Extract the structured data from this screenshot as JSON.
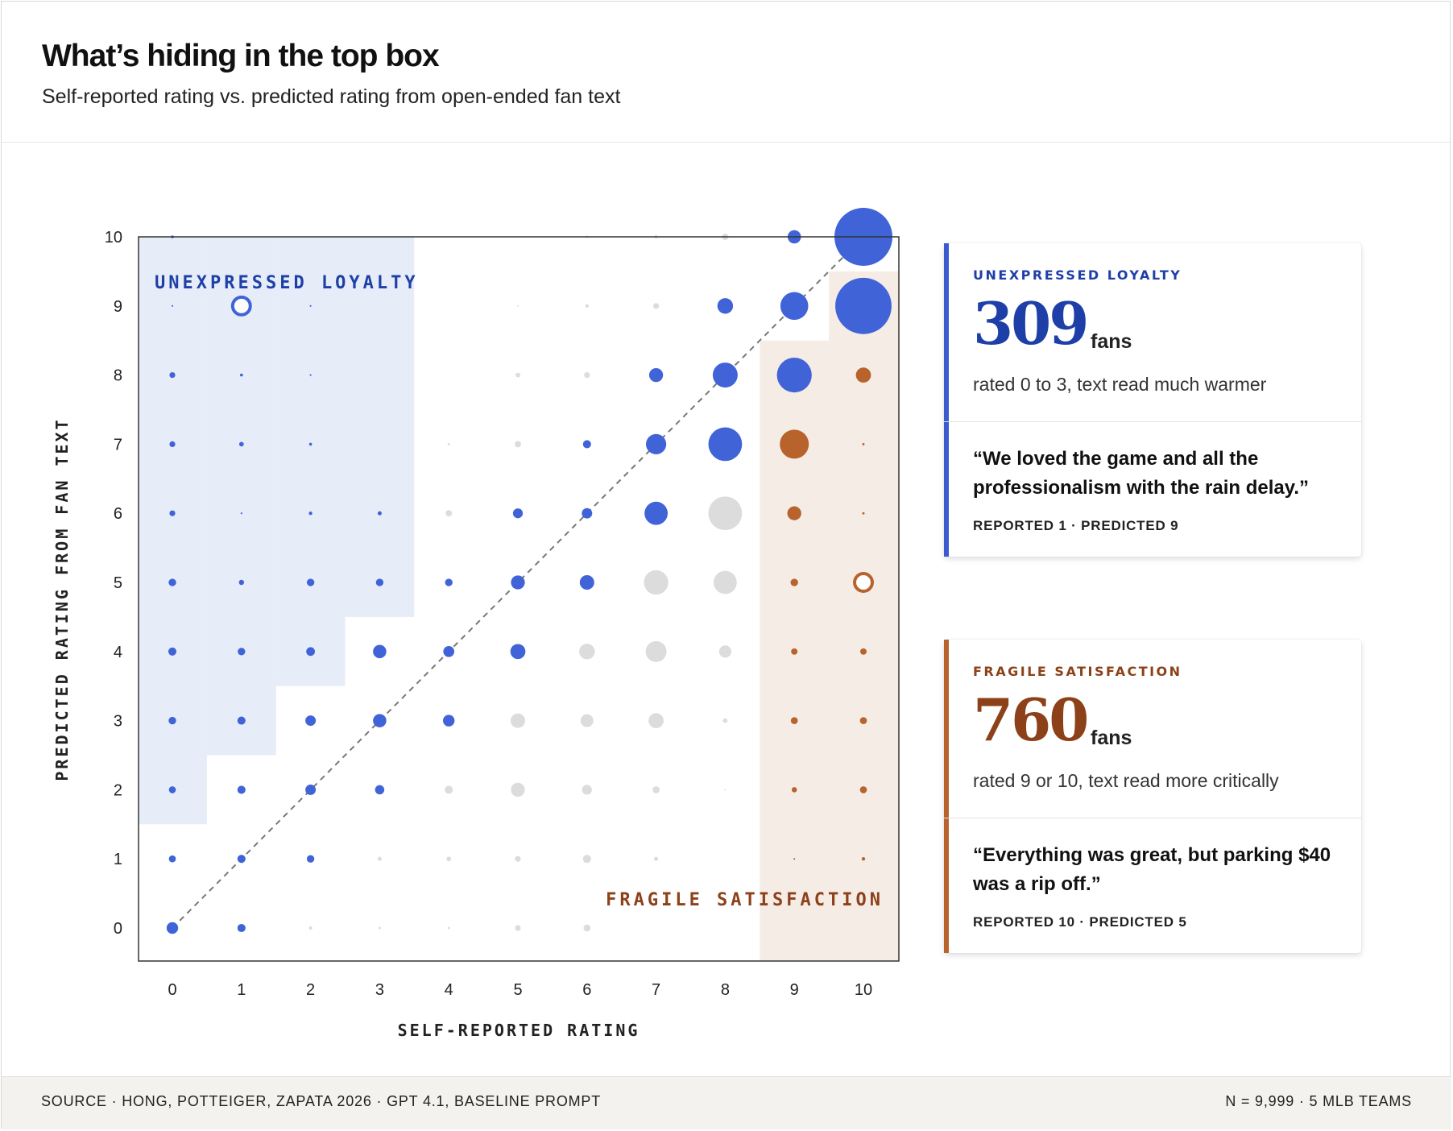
{
  "header": {
    "title": "What’s hiding in the top box",
    "subtitle": "Self-reported rating vs. predicted rating from open-ended fan text"
  },
  "colors": {
    "blue": "#4064d8",
    "blue_dark": "#1f3fa8",
    "orange": "#b8622c",
    "orange_dark": "#8c4119",
    "gray": "#dcdcdc",
    "blue_region": "#e6edf8",
    "orange_region": "#f5ece6"
  },
  "chart_data": {
    "type": "scatter",
    "title": "Self-reported rating vs. predicted rating from open-ended fan text",
    "xlabel": "SELF-REPORTED RATING",
    "ylabel": "PREDICTED RATING FROM FAN TEXT",
    "xlim": [
      0,
      10
    ],
    "ylim": [
      0,
      10
    ],
    "xticks": [
      "0",
      "1",
      "2",
      "3",
      "4",
      "5",
      "6",
      "7",
      "8",
      "9",
      "10"
    ],
    "yticks": [
      "0",
      "1",
      "2",
      "3",
      "4",
      "5",
      "6",
      "7",
      "8",
      "9",
      "10"
    ],
    "diagonal": "dashed reference line y = x",
    "region_labels": {
      "unexpressed_loyalty": "UNEXPRESSED LOYALTY",
      "fragile_satisfaction": "FRAGILE SATISFACTION"
    },
    "regions": {
      "unexpressed_loyalty_rule": "reported 0-3, predicted at least reported + 2",
      "fragile_satisfaction_rule": "reported 9-10, predicted below reported"
    },
    "size_scale": "circle radius relative to largest bubble (1.0)",
    "points": [
      {
        "x": 0,
        "y": 10,
        "r": 0.05,
        "c": "blue"
      },
      {
        "x": 0,
        "y": 9,
        "r": 0.03,
        "c": "blue"
      },
      {
        "x": 0,
        "y": 8,
        "r": 0.1,
        "c": "blue"
      },
      {
        "x": 0,
        "y": 7,
        "r": 0.1,
        "c": "blue"
      },
      {
        "x": 0,
        "y": 6,
        "r": 0.1,
        "c": "blue"
      },
      {
        "x": 0,
        "y": 5,
        "r": 0.13,
        "c": "blue"
      },
      {
        "x": 0,
        "y": 4,
        "r": 0.14,
        "c": "blue"
      },
      {
        "x": 0,
        "y": 3,
        "r": 0.13,
        "c": "blue"
      },
      {
        "x": 0,
        "y": 2,
        "r": 0.12,
        "c": "blue"
      },
      {
        "x": 0,
        "y": 1,
        "r": 0.12,
        "c": "blue"
      },
      {
        "x": 0,
        "y": 0,
        "r": 0.2,
        "c": "blue"
      },
      {
        "x": 1,
        "y": 9,
        "r": 0.36,
        "c": "blue",
        "hollow": true
      },
      {
        "x": 1,
        "y": 8,
        "r": 0.05,
        "c": "blue"
      },
      {
        "x": 1,
        "y": 7,
        "r": 0.08,
        "c": "blue"
      },
      {
        "x": 1,
        "y": 6,
        "r": 0.03,
        "c": "blue"
      },
      {
        "x": 1,
        "y": 5,
        "r": 0.09,
        "c": "blue"
      },
      {
        "x": 1,
        "y": 4,
        "r": 0.13,
        "c": "blue"
      },
      {
        "x": 1,
        "y": 3,
        "r": 0.14,
        "c": "blue"
      },
      {
        "x": 1,
        "y": 2,
        "r": 0.14,
        "c": "blue"
      },
      {
        "x": 1,
        "y": 1,
        "r": 0.14,
        "c": "blue"
      },
      {
        "x": 1,
        "y": 0,
        "r": 0.14,
        "c": "blue"
      },
      {
        "x": 2,
        "y": 9,
        "r": 0.03,
        "c": "blue"
      },
      {
        "x": 2,
        "y": 8,
        "r": 0.03,
        "c": "blue"
      },
      {
        "x": 2,
        "y": 7,
        "r": 0.05,
        "c": "blue"
      },
      {
        "x": 2,
        "y": 6,
        "r": 0.06,
        "c": "blue"
      },
      {
        "x": 2,
        "y": 5,
        "r": 0.13,
        "c": "blue"
      },
      {
        "x": 2,
        "y": 4,
        "r": 0.15,
        "c": "blue"
      },
      {
        "x": 2,
        "y": 3,
        "r": 0.18,
        "c": "blue"
      },
      {
        "x": 2,
        "y": 2,
        "r": 0.18,
        "c": "blue"
      },
      {
        "x": 2,
        "y": 1,
        "r": 0.13,
        "c": "blue"
      },
      {
        "x": 2,
        "y": 0,
        "r": 0.06,
        "c": "gray"
      },
      {
        "x": 3,
        "y": 6,
        "r": 0.07,
        "c": "blue"
      },
      {
        "x": 3,
        "y": 5,
        "r": 0.13,
        "c": "blue"
      },
      {
        "x": 3,
        "y": 4,
        "r": 0.23,
        "c": "blue"
      },
      {
        "x": 3,
        "y": 3,
        "r": 0.23,
        "c": "blue"
      },
      {
        "x": 3,
        "y": 2,
        "r": 0.16,
        "c": "blue"
      },
      {
        "x": 3,
        "y": 1,
        "r": 0.07,
        "c": "gray"
      },
      {
        "x": 3,
        "y": 0,
        "r": 0.04,
        "c": "gray"
      },
      {
        "x": 4,
        "y": 7,
        "r": 0.04,
        "c": "gray"
      },
      {
        "x": 4,
        "y": 6,
        "r": 0.11,
        "c": "gray"
      },
      {
        "x": 4,
        "y": 5,
        "r": 0.13,
        "c": "blue"
      },
      {
        "x": 4,
        "y": 4,
        "r": 0.19,
        "c": "blue"
      },
      {
        "x": 4,
        "y": 3,
        "r": 0.2,
        "c": "blue"
      },
      {
        "x": 4,
        "y": 2,
        "r": 0.14,
        "c": "gray"
      },
      {
        "x": 4,
        "y": 1,
        "r": 0.08,
        "c": "gray"
      },
      {
        "x": 4,
        "y": 0,
        "r": 0.04,
        "c": "gray"
      },
      {
        "x": 5,
        "y": 9,
        "r": 0.03,
        "c": "gray"
      },
      {
        "x": 5,
        "y": 8,
        "r": 0.08,
        "c": "gray"
      },
      {
        "x": 5,
        "y": 7,
        "r": 0.11,
        "c": "gray"
      },
      {
        "x": 5,
        "y": 6,
        "r": 0.17,
        "c": "blue"
      },
      {
        "x": 5,
        "y": 5,
        "r": 0.24,
        "c": "blue"
      },
      {
        "x": 5,
        "y": 4,
        "r": 0.26,
        "c": "blue"
      },
      {
        "x": 5,
        "y": 3,
        "r": 0.25,
        "c": "gray"
      },
      {
        "x": 5,
        "y": 2,
        "r": 0.24,
        "c": "gray"
      },
      {
        "x": 5,
        "y": 1,
        "r": 0.1,
        "c": "gray"
      },
      {
        "x": 5,
        "y": 0,
        "r": 0.1,
        "c": "gray"
      },
      {
        "x": 6,
        "y": 10,
        "r": 0.04,
        "c": "gray"
      },
      {
        "x": 6,
        "y": 9,
        "r": 0.06,
        "c": "gray"
      },
      {
        "x": 6,
        "y": 8,
        "r": 0.1,
        "c": "gray"
      },
      {
        "x": 6,
        "y": 7,
        "r": 0.14,
        "c": "blue"
      },
      {
        "x": 6,
        "y": 6,
        "r": 0.18,
        "c": "blue"
      },
      {
        "x": 6,
        "y": 5,
        "r": 0.25,
        "c": "blue"
      },
      {
        "x": 6,
        "y": 4,
        "r": 0.27,
        "c": "gray"
      },
      {
        "x": 6,
        "y": 3,
        "r": 0.22,
        "c": "gray"
      },
      {
        "x": 6,
        "y": 2,
        "r": 0.17,
        "c": "gray"
      },
      {
        "x": 6,
        "y": 1,
        "r": 0.14,
        "c": "gray"
      },
      {
        "x": 6,
        "y": 0,
        "r": 0.12,
        "c": "gray"
      },
      {
        "x": 7,
        "y": 10,
        "r": 0.06,
        "c": "gray"
      },
      {
        "x": 7,
        "y": 9,
        "r": 0.1,
        "c": "gray"
      },
      {
        "x": 7,
        "y": 8,
        "r": 0.24,
        "c": "blue"
      },
      {
        "x": 7,
        "y": 7,
        "r": 0.35,
        "c": "blue"
      },
      {
        "x": 7,
        "y": 6,
        "r": 0.4,
        "c": "blue"
      },
      {
        "x": 7,
        "y": 5,
        "r": 0.42,
        "c": "gray"
      },
      {
        "x": 7,
        "y": 4,
        "r": 0.36,
        "c": "gray"
      },
      {
        "x": 7,
        "y": 3,
        "r": 0.26,
        "c": "gray"
      },
      {
        "x": 7,
        "y": 2,
        "r": 0.12,
        "c": "gray"
      },
      {
        "x": 7,
        "y": 1,
        "r": 0.07,
        "c": "gray"
      },
      {
        "x": 8,
        "y": 10,
        "r": 0.11,
        "c": "gray"
      },
      {
        "x": 8,
        "y": 9,
        "r": 0.27,
        "c": "blue"
      },
      {
        "x": 8,
        "y": 8,
        "r": 0.43,
        "c": "blue"
      },
      {
        "x": 8,
        "y": 7,
        "r": 0.58,
        "c": "blue"
      },
      {
        "x": 8,
        "y": 6,
        "r": 0.58,
        "c": "gray"
      },
      {
        "x": 8,
        "y": 5,
        "r": 0.4,
        "c": "gray"
      },
      {
        "x": 8,
        "y": 4,
        "r": 0.21,
        "c": "gray"
      },
      {
        "x": 8,
        "y": 3,
        "r": 0.08,
        "c": "gray"
      },
      {
        "x": 8,
        "y": 2,
        "r": 0.03,
        "c": "gray"
      },
      {
        "x": 9,
        "y": 10,
        "r": 0.23,
        "c": "blue"
      },
      {
        "x": 9,
        "y": 9,
        "r": 0.48,
        "c": "blue"
      },
      {
        "x": 9,
        "y": 8,
        "r": 0.6,
        "c": "blue"
      },
      {
        "x": 9,
        "y": 7,
        "r": 0.5,
        "c": "orange"
      },
      {
        "x": 9,
        "y": 6,
        "r": 0.24,
        "c": "orange"
      },
      {
        "x": 9,
        "y": 5,
        "r": 0.13,
        "c": "orange"
      },
      {
        "x": 9,
        "y": 4,
        "r": 0.11,
        "c": "orange"
      },
      {
        "x": 9,
        "y": 3,
        "r": 0.12,
        "c": "orange"
      },
      {
        "x": 9,
        "y": 2,
        "r": 0.09,
        "c": "orange"
      },
      {
        "x": 9,
        "y": 1,
        "r": 0.03,
        "c": "orange"
      },
      {
        "x": 10,
        "y": 10,
        "r": 1.0,
        "c": "blue"
      },
      {
        "x": 10,
        "y": 9,
        "r": 0.97,
        "c": "blue"
      },
      {
        "x": 10,
        "y": 8,
        "r": 0.26,
        "c": "orange"
      },
      {
        "x": 10,
        "y": 7,
        "r": 0.04,
        "c": "orange"
      },
      {
        "x": 10,
        "y": 6,
        "r": 0.04,
        "c": "orange"
      },
      {
        "x": 10,
        "y": 5,
        "r": 0.36,
        "c": "orange",
        "hollow": true
      },
      {
        "x": 10,
        "y": 4,
        "r": 0.11,
        "c": "orange"
      },
      {
        "x": 10,
        "y": 3,
        "r": 0.12,
        "c": "orange"
      },
      {
        "x": 10,
        "y": 2,
        "r": 0.12,
        "c": "orange"
      },
      {
        "x": 10,
        "y": 1,
        "r": 0.06,
        "c": "orange"
      }
    ]
  },
  "cards": {
    "loyalty": {
      "label": "UNEXPRESSED LOYALTY",
      "count": "309",
      "unit": "fans",
      "desc": "rated 0 to 3, text read much warmer",
      "quote": "“We loved the game and all the professionalism with the rain delay.”",
      "meta": "REPORTED 1 · PREDICTED 9"
    },
    "fragile": {
      "label": "FRAGILE SATISFACTION",
      "count": "760",
      "unit": "fans",
      "desc": "rated 9 or 10, text read more critically",
      "quote": "“Everything was great, but parking $40 was a rip off.”",
      "meta": "REPORTED 10 · PREDICTED 5"
    }
  },
  "footer": {
    "source": "SOURCE · HONG, POTTEIGER, ZAPATA 2026 · GPT 4.1, BASELINE PROMPT",
    "n": "N = 9,999 · 5 MLB TEAMS"
  }
}
